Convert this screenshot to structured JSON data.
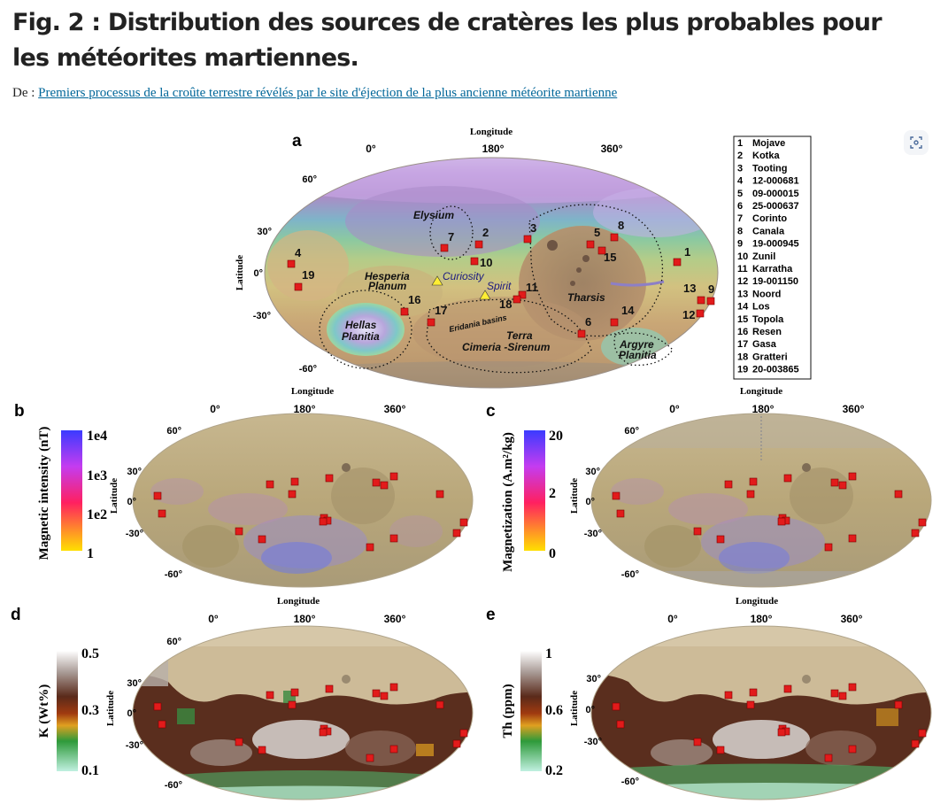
{
  "title": "Fig. 2 : Distribution des sources de cratères les plus probables pour les météorites martiennes.",
  "source_prefix": "De :",
  "source_link": "Premiers processus de la croûte terrestre révélés par le site d'éjection de la plus ancienne météorite martienne",
  "figure": {
    "panel_a": {
      "letter": "a",
      "x_axis_title": "Longitude",
      "y_axis_title": "Latitude",
      "x_ticks": [
        "0°",
        "180°",
        "360°"
      ],
      "y_ticks": [
        "60°",
        "30°",
        "0°",
        "-30°",
        "-60°"
      ],
      "regions": [
        "Elysium",
        "Hesperia",
        "Planum",
        "Hellas",
        "Planitia",
        "Tharsis",
        "Eridania basins",
        "Terra",
        "Cimeria -Sirenum",
        "Argyre",
        "Planitia"
      ],
      "rovers": [
        "Curiosity",
        "Spirit"
      ],
      "site_numbers": [
        "1",
        "2",
        "3",
        "4",
        "5",
        "6",
        "7",
        "8",
        "9",
        "10",
        "11",
        "12",
        "13",
        "14",
        "15",
        "16",
        "17",
        "18",
        "19"
      ]
    },
    "legend_craters": [
      {
        "num": "1",
        "name": "Mojave"
      },
      {
        "num": "2",
        "name": "Kotka"
      },
      {
        "num": "3",
        "name": "Tooting"
      },
      {
        "num": "4",
        "name": "12-000681"
      },
      {
        "num": "5",
        "name": "09-000015"
      },
      {
        "num": "6",
        "name": "25-000637"
      },
      {
        "num": "7",
        "name": "Corinto"
      },
      {
        "num": "8",
        "name": "Canala"
      },
      {
        "num": "9",
        "name": "19-000945"
      },
      {
        "num": "10",
        "name": "Zunil"
      },
      {
        "num": "11",
        "name": "Karratha"
      },
      {
        "num": "12",
        "name": "19-001150"
      },
      {
        "num": "13",
        "name": "Noord"
      },
      {
        "num": "14",
        "name": "Los"
      },
      {
        "num": "15",
        "name": "Topola"
      },
      {
        "num": "16",
        "name": "Resen"
      },
      {
        "num": "17",
        "name": "Gasa"
      },
      {
        "num": "18",
        "name": "Gratteri"
      },
      {
        "num": "19",
        "name": "20-003865"
      }
    ],
    "panel_b": {
      "letter": "b",
      "colorbar_label": "Magnetic intensity (nT)",
      "colorbar_ticks": [
        "1e4",
        "1e3",
        "1e2",
        "1"
      ],
      "x_axis_title": "Longitude",
      "y_axis_title": "Latitude",
      "x_ticks": [
        "0°",
        "180°",
        "360°"
      ],
      "y_ticks": [
        "60°",
        "30°",
        "0°",
        "-30°",
        "-60°"
      ]
    },
    "panel_c": {
      "letter": "c",
      "colorbar_label": "Magnetization (A.m²/kg)",
      "colorbar_ticks": [
        "20",
        "2",
        "0"
      ],
      "x_axis_title": "Longitude",
      "y_axis_title": "Latitude",
      "x_ticks": [
        "0°",
        "180°",
        "360°"
      ],
      "y_ticks": [
        "60°",
        "30°",
        "0°",
        "-30°",
        "-60°"
      ]
    },
    "panel_d": {
      "letter": "d",
      "colorbar_label": "K (Wt%)",
      "colorbar_ticks": [
        "0.5",
        "0.3",
        "0.1"
      ],
      "y_axis_title": "Latitude",
      "x_ticks": [
        "0°",
        "180°",
        "360°"
      ],
      "y_ticks": [
        "60°",
        "30°",
        "0°",
        "-30°",
        "-60°"
      ]
    },
    "panel_e": {
      "letter": "e",
      "colorbar_label": "Th (ppm)",
      "colorbar_ticks": [
        "1",
        "0.6",
        "0.2"
      ],
      "y_axis_title": "Latitude",
      "x_ticks": [
        "0°",
        "180°",
        "360°"
      ],
      "y_ticks": [
        "30°",
        "0°",
        "-30°",
        "-60°"
      ]
    }
  },
  "colors": {
    "title": "#222222",
    "link": "#006699",
    "marker": "#e21b1b"
  }
}
